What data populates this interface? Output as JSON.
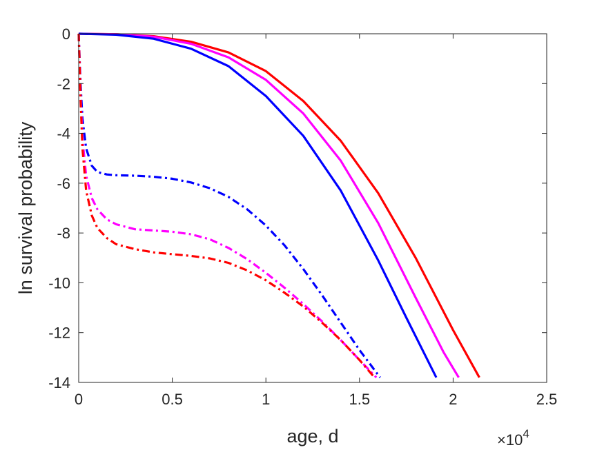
{
  "chart_data": {
    "type": "line",
    "title": "",
    "xlabel": "age, d",
    "ylabel": "ln survival probability",
    "x_exponent_label": "×10",
    "x_exponent_power": "4",
    "xlim": [
      0,
      25000
    ],
    "ylim": [
      -14,
      0
    ],
    "xticks": [
      0,
      5000,
      10000,
      15000,
      20000,
      25000
    ],
    "xtick_labels": [
      "0",
      "0.5",
      "1",
      "1.5",
      "2",
      "2.5"
    ],
    "yticks": [
      -14,
      -12,
      -10,
      -8,
      -6,
      -4,
      -2,
      0
    ],
    "ytick_labels": [
      "-14",
      "-12",
      "-10",
      "-8",
      "-6",
      "-4",
      "-2",
      "0"
    ],
    "grid": false,
    "legend": "none",
    "series": [
      {
        "color": "#ff0000",
        "style": "solid",
        "x": [
          0,
          2000,
          4000,
          6000,
          8000,
          10000,
          12000,
          14000,
          16000,
          18000,
          20000,
          21400
        ],
        "y": [
          0,
          -0.02,
          -0.1,
          -0.32,
          -0.75,
          -1.5,
          -2.7,
          -4.3,
          -6.4,
          -9.0,
          -11.9,
          -13.8
        ]
      },
      {
        "color": "#ff00ff",
        "style": "solid",
        "x": [
          0,
          2000,
          4000,
          6000,
          8000,
          10000,
          12000,
          14000,
          16000,
          18000,
          19500,
          20300
        ],
        "y": [
          0,
          -0.02,
          -0.12,
          -0.4,
          -0.95,
          -1.85,
          -3.2,
          -5.1,
          -7.6,
          -10.6,
          -12.8,
          -13.8
        ]
      },
      {
        "color": "#0000ff",
        "style": "solid",
        "x": [
          0,
          2000,
          4000,
          6000,
          8000,
          10000,
          12000,
          14000,
          16000,
          17500,
          19100
        ],
        "y": [
          0,
          -0.04,
          -0.2,
          -0.6,
          -1.3,
          -2.5,
          -4.1,
          -6.3,
          -9.1,
          -11.4,
          -13.8
        ]
      },
      {
        "color": "#0000ff",
        "style": "dashdot",
        "x": [
          0,
          100,
          200,
          400,
          700,
          1000,
          1500,
          2000,
          3000,
          4000,
          5000,
          6000,
          7000,
          8000,
          9000,
          10000,
          11000,
          12000,
          13000,
          14000,
          15000,
          16100
        ],
        "y": [
          0,
          -2.0,
          -3.4,
          -4.6,
          -5.3,
          -5.55,
          -5.65,
          -5.68,
          -5.7,
          -5.74,
          -5.82,
          -5.97,
          -6.2,
          -6.55,
          -7.05,
          -7.7,
          -8.5,
          -9.45,
          -10.5,
          -11.6,
          -12.7,
          -13.8
        ]
      },
      {
        "color": "#ff00ff",
        "style": "dashdot",
        "x": [
          0,
          100,
          200,
          400,
          700,
          1000,
          1500,
          2000,
          3000,
          4000,
          5000,
          6000,
          7000,
          8000,
          9000,
          10000,
          11000,
          12000,
          13000,
          14000,
          15000,
          15900
        ],
        "y": [
          0,
          -2.4,
          -4.2,
          -5.7,
          -6.6,
          -7.05,
          -7.45,
          -7.65,
          -7.85,
          -7.9,
          -7.95,
          -8.05,
          -8.25,
          -8.6,
          -9.05,
          -9.6,
          -10.2,
          -10.85,
          -11.55,
          -12.3,
          -13.1,
          -13.8
        ]
      },
      {
        "color": "#ff0000",
        "style": "dashdot",
        "x": [
          0,
          100,
          200,
          400,
          700,
          1000,
          1500,
          2000,
          3000,
          4000,
          5000,
          6000,
          7000,
          8000,
          9000,
          10000,
          11000,
          12000,
          13000,
          14000,
          15000,
          15800
        ],
        "y": [
          0,
          -2.6,
          -4.6,
          -6.3,
          -7.3,
          -7.8,
          -8.2,
          -8.45,
          -8.65,
          -8.78,
          -8.85,
          -8.92,
          -9.02,
          -9.2,
          -9.5,
          -9.9,
          -10.4,
          -10.95,
          -11.6,
          -12.3,
          -13.1,
          -13.8
        ]
      }
    ]
  }
}
